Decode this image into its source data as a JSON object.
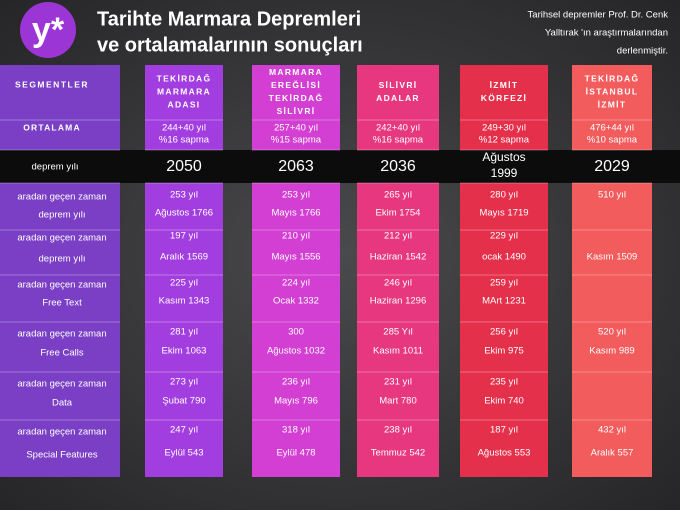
{
  "header": {
    "logo": "y*",
    "title_lines": [
      "Tarihte Marmara Depremleri",
      "ve ortalamalarının sonuçları"
    ],
    "note_lines": [
      "Tarihsel depremler Prof. Dr. Cenk",
      "Yalltırak 'ın araştırmalarından",
      "derlenmiştir."
    ]
  },
  "labels": {
    "segment": "SEGMENTLER",
    "average": "ORTALAMA",
    "year": "deprem yılı",
    "rows": [
      [
        "aradan geçen zaman",
        "deprem yılı"
      ],
      [
        "aradan geçen zaman",
        "deprem yılı"
      ],
      [
        "aradan geçen zaman",
        "Free Text"
      ],
      [
        "aradan geçen zaman",
        "Free Calls"
      ],
      [
        "aradan geçen zaman",
        "Data"
      ],
      [
        "aradan geçen zaman",
        "Special Features"
      ]
    ]
  },
  "columns": [
    {
      "name_lines": [
        "TEKİRDAĞ",
        "MARMARA",
        "ADASI"
      ],
      "color": "#a23ee0",
      "average": [
        "244+40 yıl",
        "%16 sapma"
      ],
      "year_lines": [
        "2050"
      ],
      "rows": [
        [
          "253 yıl",
          "Ağustos 1766"
        ],
        [
          "197 yıl",
          "Aralık 1569"
        ],
        [
          "225 yıl",
          "Kasım 1343"
        ],
        [
          "281 yıl",
          "Ekim 1063"
        ],
        [
          "273 yıl",
          "Şubat 790"
        ],
        [
          "247 yıl",
          "Eylül 543"
        ]
      ]
    },
    {
      "name_lines": [
        "MARMARA",
        "EREĞLİSİ",
        "TEKİRDAĞ",
        "SİLİVRİ"
      ],
      "color": "#d23fd2",
      "average": [
        "257+40 yıl",
        "%15 sapma"
      ],
      "year_lines": [
        "2063"
      ],
      "rows": [
        [
          "253 yıl",
          "Mayıs 1766"
        ],
        [
          "210 yıl",
          "Mayıs 1556"
        ],
        [
          "224 yıl",
          "Ocak 1332"
        ],
        [
          "300",
          "Ağustos 1032"
        ],
        [
          "236 yıl",
          "Mayıs 796"
        ],
        [
          "318 yıl",
          "Eylül 478"
        ]
      ]
    },
    {
      "name_lines": [
        "SİLİVRİ",
        "ADALAR"
      ],
      "color": "#e6377f",
      "average": [
        "242+40 yıl",
        "%16 sapma"
      ],
      "year_lines": [
        "2036"
      ],
      "rows": [
        [
          "265 yıl",
          "Ekim 1754"
        ],
        [
          "212 yıl",
          "Haziran 1542"
        ],
        [
          "246 yıl",
          "Haziran 1296"
        ],
        [
          "285 Yıl",
          "Kasım 1011"
        ],
        [
          "231 yıl",
          "Mart 780"
        ],
        [
          "238 yıl",
          "Temmuz 542"
        ]
      ]
    },
    {
      "name_lines": [
        "İZMİT",
        "KÖRFEZİ"
      ],
      "color": "#e5304b",
      "average": [
        "249+30 yıl",
        "%12 sapma"
      ],
      "year_lines": [
        "Ağustos",
        "1999"
      ],
      "rows": [
        [
          "280 yıl",
          "Mayıs 1719"
        ],
        [
          "229 yıl",
          "ocak 1490"
        ],
        [
          "259 yıl",
          "MArt 1231"
        ],
        [
          "256 yıl",
          "Ekim 975"
        ],
        [
          "235 yıl",
          "Ekim 740"
        ],
        [
          "187 yıl",
          "Ağustos 553"
        ]
      ]
    },
    {
      "name_lines": [
        "TEKİRDAĞ",
        "İSTANBUL",
        "İZMİT"
      ],
      "color": "#f25c5c",
      "average": [
        "476+44 yıl",
        "%10 sapma"
      ],
      "year_lines": [
        "2029"
      ],
      "rows": [
        [
          "510 yıl",
          null
        ],
        [
          null,
          "Kasım 1509"
        ],
        [
          null,
          null
        ],
        [
          "520 yıl",
          "Kasım 989"
        ],
        [
          null,
          null
        ],
        [
          "432 yıl",
          "Aralık 557"
        ]
      ]
    }
  ]
}
